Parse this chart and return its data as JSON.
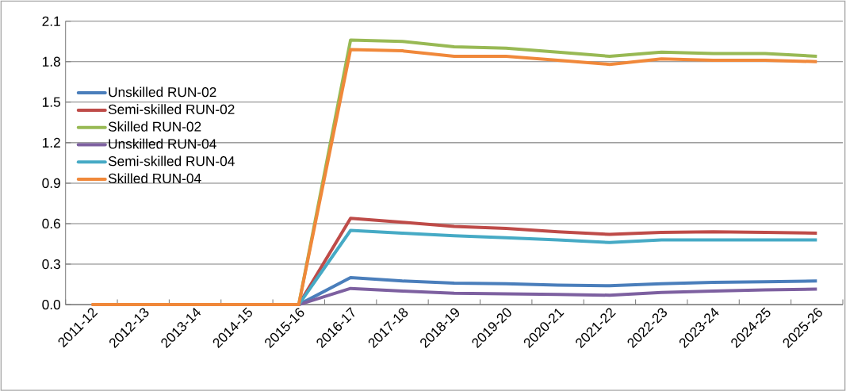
{
  "chart_data": {
    "type": "line",
    "categories": [
      "2011-12",
      "2012-13",
      "2013-14",
      "2014-15",
      "2015-16",
      "2016-17",
      "2017-18",
      "2018-19",
      "2019-20",
      "2020-21",
      "2021-22",
      "2022-23",
      "2023-24",
      "2024-25",
      "2025-26"
    ],
    "series": [
      {
        "name": "Unskilled RUN-02",
        "color": "#4a7ebb",
        "values": [
          null,
          null,
          null,
          null,
          0,
          0.2,
          0.175,
          0.16,
          0.155,
          0.145,
          0.14,
          0.155,
          0.165,
          0.17,
          0.175
        ]
      },
      {
        "name": "Semi-skilled RUN-02",
        "color": "#be4b48",
        "values": [
          null,
          null,
          null,
          null,
          0,
          0.64,
          0.61,
          0.58,
          0.565,
          0.54,
          0.52,
          0.535,
          0.54,
          0.535,
          0.53
        ]
      },
      {
        "name": "Skilled RUN-02",
        "color": "#98b954",
        "values": [
          null,
          null,
          null,
          null,
          0,
          1.96,
          1.95,
          1.91,
          1.9,
          1.87,
          1.84,
          1.87,
          1.86,
          1.86,
          1.84
        ]
      },
      {
        "name": "Unskilled RUN-04",
        "color": "#7d60a0",
        "values": [
          null,
          null,
          null,
          null,
          0,
          0.12,
          0.1,
          0.085,
          0.08,
          0.075,
          0.07,
          0.09,
          0.1,
          0.11,
          0.115
        ]
      },
      {
        "name": "Semi-skilled RUN-04",
        "color": "#46aac5",
        "values": [
          null,
          null,
          null,
          null,
          0,
          0.55,
          0.53,
          0.51,
          0.495,
          0.48,
          0.46,
          0.48,
          0.48,
          0.48,
          0.48
        ]
      },
      {
        "name": "Skilled RUN-04",
        "color": "#f0883a",
        "values": [
          0,
          0,
          0,
          0,
          0,
          1.89,
          1.88,
          1.84,
          1.84,
          1.81,
          1.78,
          1.82,
          1.81,
          1.81,
          1.8
        ]
      }
    ],
    "ylim": [
      0,
      2.1
    ],
    "yticks": [
      {
        "value": 0,
        "label": "0.0"
      },
      0.3,
      0.6,
      0.9,
      1.2,
      1.5,
      1.8,
      2.1
    ],
    "grid": "y",
    "legend": "left",
    "marker": "none",
    "line_style": "solid"
  }
}
